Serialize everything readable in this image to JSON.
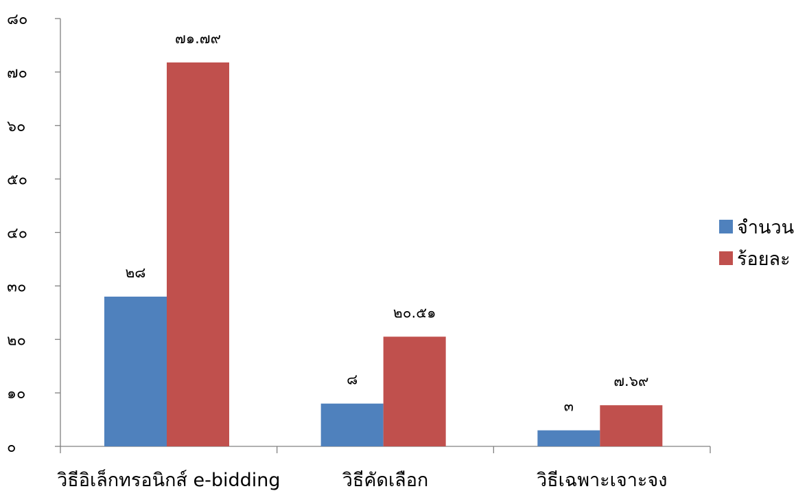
{
  "chart_data": {
    "type": "bar",
    "categories": [
      "วิธีอิเล็กทรอนิกส์ e-bidding",
      "วิธีคัดเลือก",
      "วิธีเฉพาะเจาะจง"
    ],
    "series": [
      {
        "name": "จำนวน",
        "color": "#4F81BD",
        "values": [
          28,
          8,
          3
        ],
        "value_labels": [
          "๒๘",
          "๘",
          "๓"
        ]
      },
      {
        "name": "ร้อยละ",
        "color": "#C0504D",
        "values": [
          71.79,
          20.51,
          7.69
        ],
        "value_labels": [
          "๗๑.๗๙",
          "๒๐.๕๑",
          "๗.๖๙"
        ]
      }
    ],
    "ylim": [
      0,
      80
    ],
    "yticks": [
      0,
      10,
      20,
      30,
      40,
      50,
      60,
      70,
      80
    ],
    "ytick_labels": [
      "๐",
      "๑๐",
      "๒๐",
      "๓๐",
      "๔๐",
      "๕๐",
      "๖๐",
      "๗๐",
      "๘๐"
    ],
    "legend_position": "right",
    "grid": false
  }
}
